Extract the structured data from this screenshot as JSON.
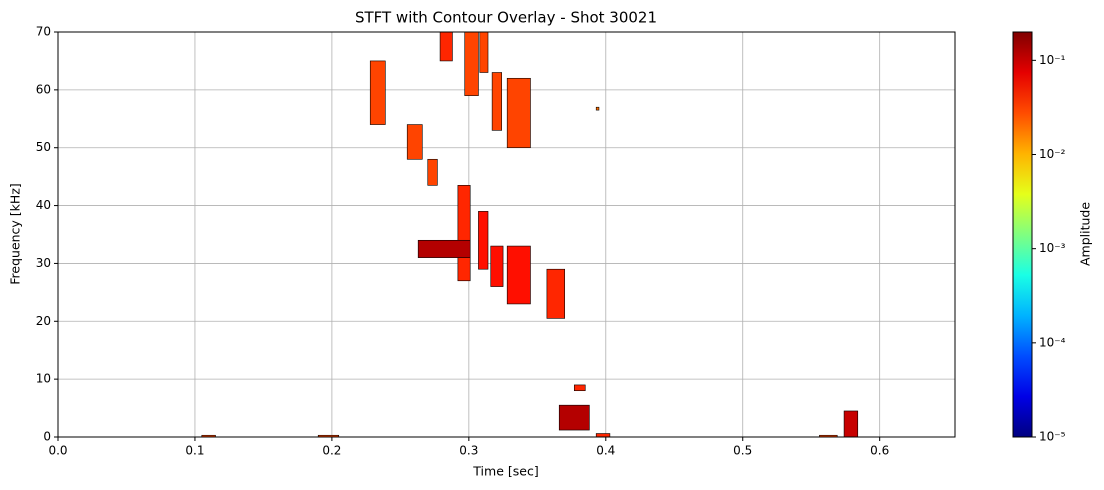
{
  "chart_data": {
    "type": "spectrogram",
    "title": "STFT with Contour Overlay - Shot 30021",
    "x_label": "Time [sec]",
    "y_label": "Frequency [kHz]",
    "xlim": [
      0,
      0.655
    ],
    "ylim": [
      0,
      70
    ],
    "xticks": [
      {
        "value": 0,
        "label": "0.0"
      },
      0.1,
      0.2,
      0.3,
      0.4,
      0.5,
      0.6
    ],
    "yticks": [
      0,
      10,
      20,
      30,
      40,
      50,
      60,
      70
    ],
    "grid": true,
    "colorbar": {
      "label": "Amplitude",
      "scale": "log",
      "colormap": "jet",
      "lim": [
        1e-05,
        0.2
      ],
      "ticks": [
        {
          "value": 1e-05,
          "label": "10⁻⁵"
        },
        {
          "value": 0.0001,
          "label": "10⁻⁴"
        },
        {
          "value": 0.001,
          "label": "10⁻³"
        },
        {
          "value": 0.01,
          "label": "10⁻²"
        },
        {
          "value": 0.1,
          "label": "10⁻¹"
        }
      ]
    },
    "patches": [
      {
        "t0": 0.105,
        "t1": 0.115,
        "f0": 0,
        "f1": 0.3,
        "amp": 0.03
      },
      {
        "t0": 0.19,
        "t1": 0.205,
        "f0": 0,
        "f1": 0.3,
        "amp": 0.03
      },
      {
        "t0": 0.228,
        "t1": 0.239,
        "f0": 54,
        "f1": 65,
        "amp": 0.03
      },
      {
        "t0": 0.255,
        "t1": 0.266,
        "f0": 48,
        "f1": 54,
        "amp": 0.03
      },
      {
        "t0": 0.27,
        "t1": 0.277,
        "f0": 43.5,
        "f1": 48,
        "amp": 0.03
      },
      {
        "t0": 0.279,
        "t1": 0.288,
        "f0": 65,
        "f1": 70,
        "amp": 0.04
      },
      {
        "t0": 0.292,
        "t1": 0.301,
        "f0": 27,
        "f1": 43.5,
        "amp": 0.04
      },
      {
        "t0": 0.263,
        "t1": 0.301,
        "f0": 31,
        "f1": 34,
        "amp": 0.12
      },
      {
        "t0": 0.297,
        "t1": 0.307,
        "f0": 59,
        "f1": 70,
        "amp": 0.03
      },
      {
        "t0": 0.308,
        "t1": 0.314,
        "f0": 63,
        "f1": 70,
        "amp": 0.03
      },
      {
        "t0": 0.307,
        "t1": 0.314,
        "f0": 29,
        "f1": 39,
        "amp": 0.05
      },
      {
        "t0": 0.316,
        "t1": 0.325,
        "f0": 26,
        "f1": 33,
        "amp": 0.05
      },
      {
        "t0": 0.317,
        "t1": 0.324,
        "f0": 53,
        "f1": 63,
        "amp": 0.03
      },
      {
        "t0": 0.328,
        "t1": 0.345,
        "f0": 23,
        "f1": 33,
        "amp": 0.05
      },
      {
        "t0": 0.328,
        "t1": 0.345,
        "f0": 50,
        "f1": 62,
        "amp": 0.03
      },
      {
        "t0": 0.357,
        "t1": 0.37,
        "f0": 20.5,
        "f1": 29,
        "amp": 0.04
      },
      {
        "t0": 0.366,
        "t1": 0.388,
        "f0": 1.2,
        "f1": 5.5,
        "amp": 0.12
      },
      {
        "t0": 0.377,
        "t1": 0.385,
        "f0": 8,
        "f1": 9,
        "amp": 0.04
      },
      {
        "t0": 0.393,
        "t1": 0.395,
        "f0": 56.5,
        "f1": 57,
        "amp": 0.02
      },
      {
        "t0": 0.393,
        "t1": 0.403,
        "f0": 0,
        "f1": 0.6,
        "amp": 0.04
      },
      {
        "t0": 0.556,
        "t1": 0.569,
        "f0": 0,
        "f1": 0.3,
        "amp": 0.03
      },
      {
        "t0": 0.574,
        "t1": 0.584,
        "f0": 0,
        "f1": 4.5,
        "amp": 0.1
      }
    ]
  }
}
